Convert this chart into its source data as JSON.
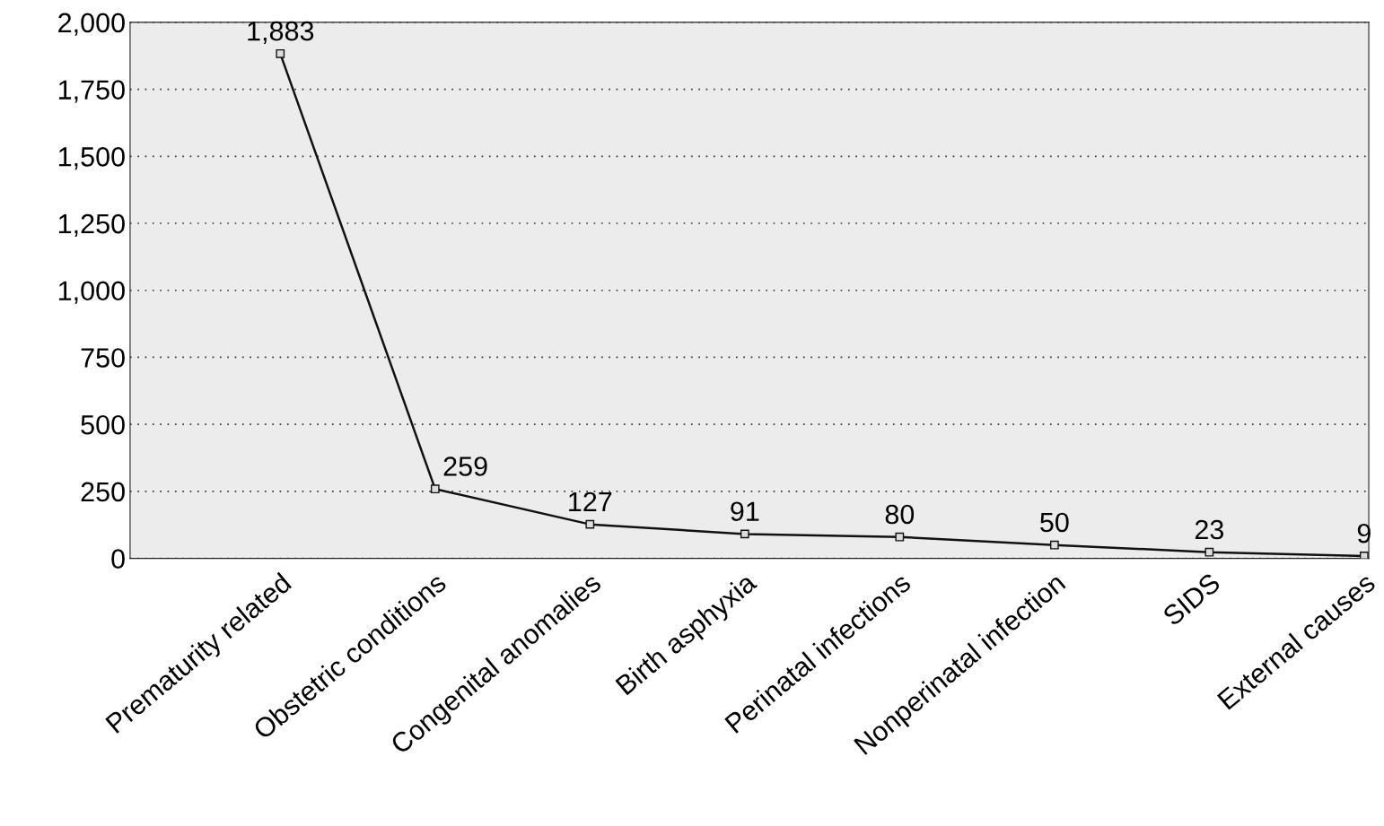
{
  "chart_data": {
    "type": "line",
    "categories": [
      "Prematurity related",
      "Obstetric conditions",
      "Congenital anomalies",
      "Birth asphyxia",
      "Perinatal infections",
      "Nonperinatal infection",
      "SIDS",
      "External causes"
    ],
    "values": [
      1883,
      259,
      127,
      91,
      80,
      50,
      23,
      9
    ],
    "value_labels": [
      "1,883",
      "259",
      "127",
      "91",
      "80",
      "50",
      "23",
      "9"
    ],
    "color": "#111111",
    "marker": "square",
    "line_style": "solid",
    "ylim": [
      0,
      2000
    ],
    "yticks": [
      0,
      250,
      500,
      750,
      {
        "value": 1000,
        "label": "1,000"
      },
      {
        "value": 1250,
        "label": "1,250"
      },
      {
        "value": 1500,
        "label": "1,500"
      },
      {
        "value": 1750,
        "label": "1,750"
      },
      {
        "value": 2000,
        "label": "2,000"
      }
    ],
    "grid": "y",
    "legend": false
  }
}
